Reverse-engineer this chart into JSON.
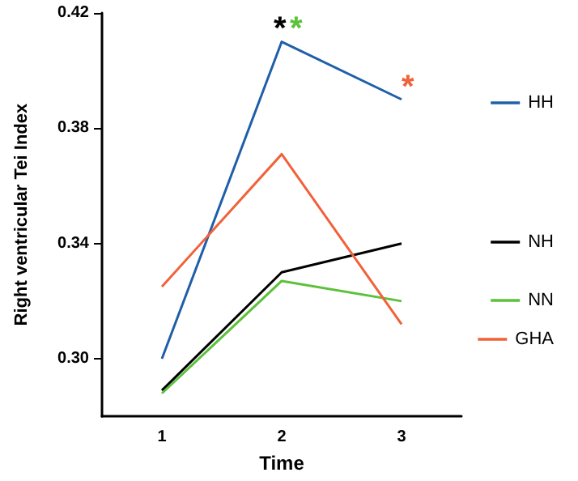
{
  "chart_data": {
    "type": "line",
    "xlabel": "Time",
    "ylabel": "Right ventricular Tei Index",
    "categories": [
      "1",
      "2",
      "3"
    ],
    "series": [
      {
        "name": "HH",
        "color": "#1f5fa8",
        "values": [
          0.3,
          0.41,
          0.39
        ]
      },
      {
        "name": "NH",
        "color": "#000000",
        "values": [
          0.289,
          0.33,
          0.34
        ]
      },
      {
        "name": "NN",
        "color": "#5cc13b",
        "values": [
          0.288,
          0.327,
          0.32
        ]
      },
      {
        "name": "GHA",
        "color": "#f0623a",
        "values": [
          0.325,
          0.371,
          0.312
        ]
      }
    ],
    "ylim": [
      0.28,
      0.42
    ],
    "yticks": [
      {
        "value": 0.3,
        "label": "0.30"
      },
      0.34,
      0.38,
      0.42
    ],
    "grid": false,
    "legend": "right",
    "marker": "none",
    "line_style": "solid",
    "annotations": [
      "*",
      "*",
      "*"
    ]
  }
}
